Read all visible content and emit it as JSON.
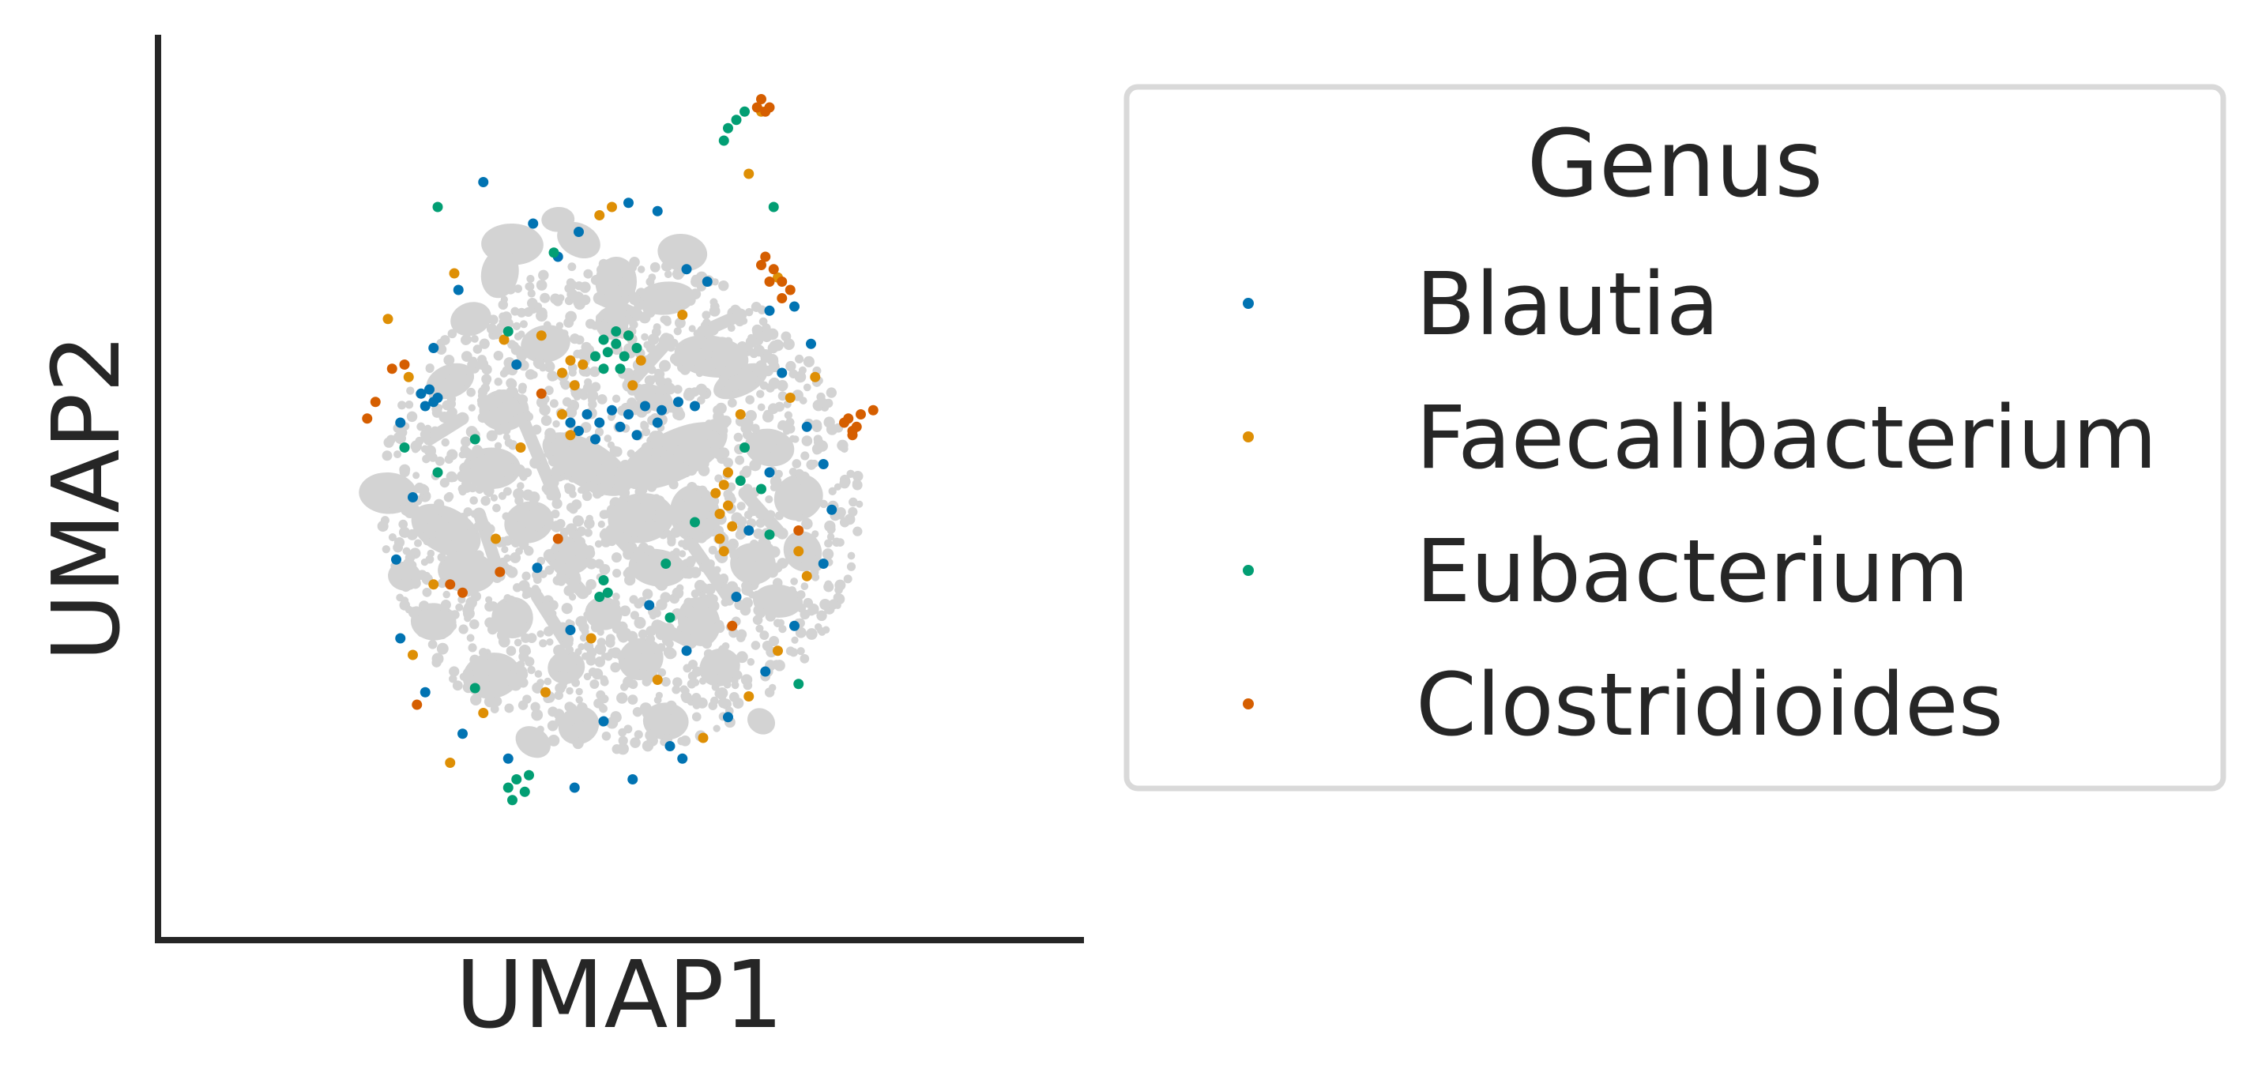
{
  "chart_data": {
    "type": "scatter",
    "xlabel": "UMAP1",
    "ylabel": "UMAP2",
    "ticks": "none",
    "grid": false,
    "spines": [
      "left",
      "bottom"
    ],
    "background_color": "#d3d3d3",
    "legend": {
      "title": "Genus",
      "placement": "outside-right",
      "entries": [
        "Blautia",
        "Faecalibacterium",
        "Eubacterium",
        "Clostridioides"
      ]
    },
    "series": [
      {
        "name": "Blautia",
        "color": "#0173b2",
        "points": [
          [
            -4.8,
            2.7
          ],
          [
            -4.6,
            2.8
          ],
          [
            -4.4,
            2.6
          ],
          [
            -4.7,
            2.4
          ],
          [
            -4.5,
            2.5
          ],
          [
            -1.2,
            2.0
          ],
          [
            -0.8,
            2.2
          ],
          [
            -0.5,
            2.0
          ],
          [
            -0.2,
            2.3
          ],
          [
            0.2,
            2.2
          ],
          [
            0.6,
            2.4
          ],
          [
            1.0,
            2.3
          ],
          [
            1.4,
            2.5
          ],
          [
            1.8,
            2.4
          ],
          [
            -1.0,
            1.8
          ],
          [
            -0.6,
            1.6
          ],
          [
            0.0,
            1.9
          ],
          [
            0.4,
            1.7
          ],
          [
            0.9,
            2.0
          ],
          [
            -3.3,
            7.8
          ],
          [
            -2.1,
            6.8
          ],
          [
            -1.0,
            6.6
          ],
          [
            0.2,
            7.3
          ],
          [
            0.9,
            7.1
          ],
          [
            -1.5,
            6.0
          ],
          [
            1.6,
            5.7
          ],
          [
            2.1,
            5.4
          ],
          [
            3.6,
            4.7
          ],
          [
            4.2,
            4.8
          ],
          [
            4.6,
            3.9
          ],
          [
            3.9,
            3.2
          ],
          [
            4.5,
            1.9
          ],
          [
            4.9,
            1.0
          ],
          [
            5.1,
            -0.1
          ],
          [
            4.9,
            -1.4
          ],
          [
            4.2,
            -2.9
          ],
          [
            3.5,
            -4.0
          ],
          [
            2.6,
            -5.1
          ],
          [
            1.5,
            -6.1
          ],
          [
            0.3,
            -6.6
          ],
          [
            -1.1,
            -6.8
          ],
          [
            -2.7,
            -6.1
          ],
          [
            -3.8,
            -5.5
          ],
          [
            -4.7,
            -4.5
          ],
          [
            -5.3,
            -3.2
          ],
          [
            -5.4,
            -1.3
          ],
          [
            -5.0,
            0.2
          ],
          [
            -5.3,
            2.0
          ],
          [
            -4.5,
            3.8
          ],
          [
            -3.9,
            5.2
          ],
          [
            -2.5,
            3.4
          ],
          [
            -2.0,
            -1.5
          ],
          [
            -1.2,
            -3.0
          ],
          [
            0.7,
            -2.4
          ],
          [
            1.6,
            -3.5
          ],
          [
            2.8,
            -2.2
          ],
          [
            3.1,
            -0.6
          ],
          [
            3.6,
            0.8
          ],
          [
            -0.4,
            -5.2
          ],
          [
            1.2,
            -5.8
          ]
        ]
      },
      {
        "name": "Faecalibacterium",
        "color": "#de8f05",
        "points": [
          [
            2.4,
            -0.2
          ],
          [
            2.6,
            0.0
          ],
          [
            2.3,
            0.3
          ],
          [
            2.5,
            0.5
          ],
          [
            2.7,
            -0.5
          ],
          [
            2.4,
            -0.8
          ],
          [
            2.6,
            0.8
          ],
          [
            2.5,
            -1.1
          ],
          [
            -1.4,
            3.2
          ],
          [
            -1.2,
            3.5
          ],
          [
            -0.9,
            3.4
          ],
          [
            -1.1,
            2.9
          ],
          [
            -1.4,
            2.2
          ],
          [
            -1.2,
            1.7
          ],
          [
            0.3,
            2.9
          ],
          [
            0.5,
            3.5
          ],
          [
            0.2,
            4.1
          ],
          [
            3.4,
            9.5
          ],
          [
            3.1,
            8.0
          ],
          [
            -0.2,
            7.2
          ],
          [
            -0.5,
            7.0
          ],
          [
            -1.9,
            4.1
          ],
          [
            -2.8,
            4.0
          ],
          [
            -5.1,
            3.1
          ],
          [
            -5.6,
            4.5
          ],
          [
            -4.0,
            5.6
          ],
          [
            1.5,
            4.6
          ],
          [
            3.8,
            5.5
          ],
          [
            4.1,
            2.6
          ],
          [
            4.7,
            3.1
          ],
          [
            4.3,
            -1.1
          ],
          [
            4.5,
            -1.7
          ],
          [
            3.8,
            -3.5
          ],
          [
            3.1,
            -4.6
          ],
          [
            2.0,
            -5.6
          ],
          [
            0.9,
            -4.2
          ],
          [
            -0.7,
            -3.2
          ],
          [
            -1.8,
            -4.5
          ],
          [
            -3.3,
            -5.0
          ],
          [
            -4.1,
            -6.2
          ],
          [
            -5.0,
            -3.6
          ],
          [
            -4.5,
            -1.9
          ],
          [
            -3.0,
            -0.8
          ],
          [
            -2.4,
            1.4
          ],
          [
            2.9,
            2.2
          ]
        ]
      },
      {
        "name": "Eubacterium",
        "color": "#029e73",
        "points": [
          [
            -0.4,
            4.0
          ],
          [
            -0.1,
            4.2
          ],
          [
            0.2,
            4.1
          ],
          [
            -0.6,
            3.6
          ],
          [
            -0.3,
            3.7
          ],
          [
            0.1,
            3.6
          ],
          [
            -0.1,
            3.9
          ],
          [
            0.4,
            3.8
          ],
          [
            0.0,
            3.3
          ],
          [
            -0.4,
            3.3
          ],
          [
            -2.7,
            -6.8
          ],
          [
            -2.5,
            -6.6
          ],
          [
            -2.3,
            -6.9
          ],
          [
            -2.6,
            -7.1
          ],
          [
            -2.2,
            -6.5
          ],
          [
            2.5,
            8.8
          ],
          [
            2.6,
            9.1
          ],
          [
            2.8,
            9.3
          ],
          [
            3.0,
            9.5
          ],
          [
            -0.4,
            -1.8
          ],
          [
            -0.3,
            -2.1
          ],
          [
            -0.5,
            -2.2
          ],
          [
            -4.4,
            0.8
          ],
          [
            -3.5,
            1.6
          ],
          [
            -5.2,
            1.4
          ],
          [
            2.9,
            0.6
          ],
          [
            3.4,
            0.4
          ],
          [
            3.0,
            1.4
          ],
          [
            3.6,
            -0.7
          ],
          [
            1.8,
            -0.4
          ],
          [
            1.1,
            -1.4
          ],
          [
            -3.5,
            -4.4
          ],
          [
            -2.7,
            4.2
          ],
          [
            -1.6,
            6.1
          ],
          [
            3.7,
            7.2
          ],
          [
            -4.4,
            7.2
          ],
          [
            1.2,
            -2.7
          ],
          [
            4.3,
            -4.3
          ]
        ]
      },
      {
        "name": "Clostridioides",
        "color": "#d55e00",
        "points": [
          [
            3.5,
            6.0
          ],
          [
            3.7,
            5.7
          ],
          [
            3.9,
            5.4
          ],
          [
            4.1,
            5.2
          ],
          [
            3.6,
            5.4
          ],
          [
            3.9,
            5.0
          ],
          [
            3.4,
            5.8
          ],
          [
            5.5,
            2.1
          ],
          [
            5.7,
            1.9
          ],
          [
            5.8,
            2.2
          ],
          [
            5.6,
            1.8
          ],
          [
            5.4,
            2.0
          ],
          [
            5.6,
            1.7
          ],
          [
            3.4,
            9.8
          ],
          [
            3.6,
            9.6
          ],
          [
            3.5,
            9.5
          ],
          [
            3.3,
            9.6
          ],
          [
            -5.9,
            2.5
          ],
          [
            -6.1,
            2.1
          ],
          [
            -5.5,
            3.3
          ],
          [
            -5.2,
            3.4
          ],
          [
            -1.5,
            -0.8
          ],
          [
            -4.1,
            -1.9
          ],
          [
            -3.8,
            -2.1
          ],
          [
            -2.9,
            -1.6
          ],
          [
            -4.9,
            -4.8
          ],
          [
            -1.9,
            2.7
          ],
          [
            6.1,
            2.3
          ],
          [
            4.3,
            -0.6
          ],
          [
            2.7,
            -2.9
          ]
        ]
      }
    ]
  }
}
